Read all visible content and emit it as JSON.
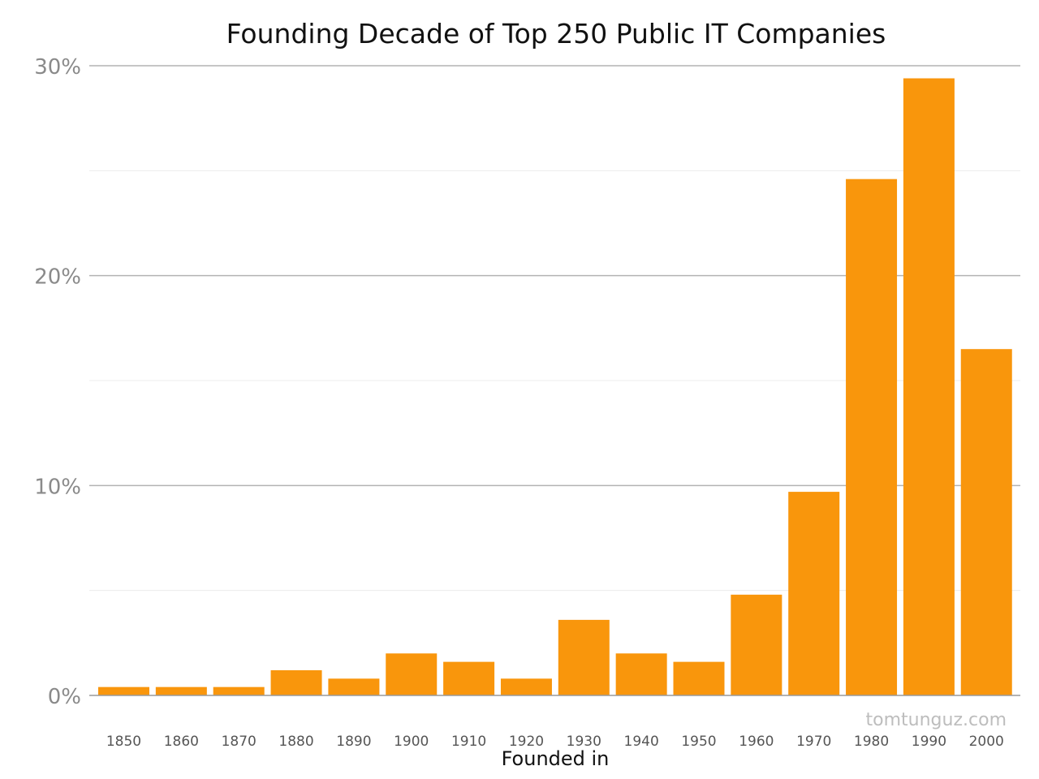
{
  "chart_data": {
    "type": "bar",
    "title": "Founding Decade of Top 250 Public IT Companies",
    "xlabel": "Founded in",
    "ylabel": "",
    "categories": [
      "1850",
      "1860",
      "1870",
      "1880",
      "1890",
      "1900",
      "1910",
      "1920",
      "1930",
      "1940",
      "1950",
      "1960",
      "1970",
      "1980",
      "1990",
      "2000"
    ],
    "values": [
      0.4,
      0.4,
      0.4,
      1.2,
      0.8,
      2.0,
      1.6,
      0.8,
      3.6,
      2.0,
      1.6,
      4.8,
      9.7,
      24.6,
      29.4,
      16.5
    ],
    "ylim": [
      0,
      30
    ],
    "yticks": [
      0,
      10,
      20,
      30
    ],
    "ytick_labels": [
      "0%",
      "10%",
      "20%",
      "30%"
    ],
    "minor_gridlines": [
      5,
      15,
      25
    ],
    "grid": true,
    "legend": "none",
    "bar_color": "#f9960c",
    "watermark": "tomtunguz.com"
  }
}
